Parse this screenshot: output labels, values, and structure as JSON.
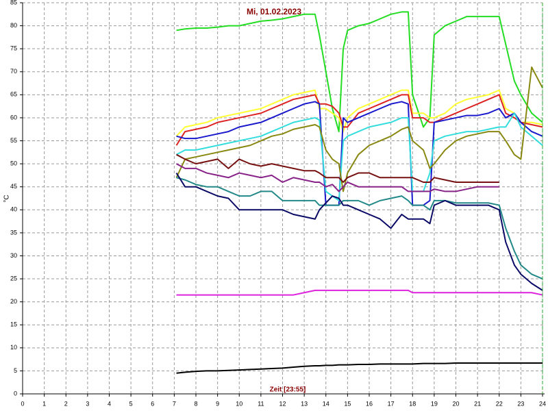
{
  "chart_data": {
    "type": "line",
    "title": "Mi, 01.02.2023",
    "x_label": "Zeit [23:55]",
    "y_label": "°C",
    "xlim": [
      0,
      24
    ],
    "ylim": [
      0,
      85
    ],
    "grid": true,
    "xticks": [
      0,
      1,
      2,
      3,
      4,
      5,
      6,
      7,
      8,
      9,
      10,
      11,
      12,
      13,
      14,
      15,
      16,
      17,
      18,
      19,
      20,
      21,
      22,
      23,
      24
    ],
    "yticks": [
      0,
      5,
      10,
      15,
      20,
      25,
      30,
      35,
      40,
      45,
      50,
      55,
      60,
      65,
      70,
      75,
      80,
      85
    ],
    "x": [
      7.1,
      7.5,
      8,
      8.5,
      9,
      9.5,
      10,
      10.5,
      11,
      11.5,
      12,
      12.5,
      13,
      13.5,
      13.7,
      14,
      14.3,
      14.6,
      14.8,
      15,
      15.5,
      16,
      16.5,
      17,
      17.5,
      17.8,
      18,
      18.5,
      18.8,
      19,
      19.5,
      20,
      20.5,
      21,
      21.5,
      22,
      22.3,
      22.7,
      23,
      23.5,
      24
    ],
    "series": [
      {
        "color": "#22dd22",
        "values": [
          79,
          79.3,
          79.5,
          79.5,
          79.7,
          80,
          80,
          80.5,
          81,
          81.2,
          81.5,
          82,
          82.5,
          82.5,
          78,
          70,
          62,
          57,
          75,
          79,
          80,
          80.5,
          81.5,
          82.5,
          83,
          83,
          65,
          58,
          60,
          78,
          80,
          81,
          82,
          82,
          82,
          82,
          76,
          68,
          65,
          61,
          59
        ]
      },
      {
        "color": "#ffff33",
        "values": [
          56,
          58,
          58.5,
          59,
          60,
          60.5,
          61,
          61.5,
          62,
          63,
          64,
          65,
          65.5,
          66,
          62,
          62,
          61,
          60,
          57,
          60,
          62,
          63,
          64,
          65,
          66,
          66,
          61,
          61,
          60,
          60,
          61,
          63,
          64,
          64.5,
          65,
          66,
          62,
          61,
          59,
          59,
          58.5
        ]
      },
      {
        "color": "#dd2222",
        "values": [
          54,
          57,
          57.5,
          58,
          59,
          59.5,
          60,
          60.5,
          61,
          62,
          63,
          64,
          64.5,
          65,
          63,
          63,
          62.5,
          61,
          58,
          58,
          61,
          62,
          63,
          64,
          65,
          65,
          60,
          60,
          59,
          59,
          60,
          61,
          62,
          63,
          64,
          65,
          61,
          60,
          59,
          58.5,
          58
        ]
      },
      {
        "color": "#1a1acc",
        "values": [
          56,
          55.5,
          55.5,
          56,
          56.5,
          57,
          58,
          58.5,
          59,
          60,
          61,
          62,
          63,
          63.5,
          63,
          41,
          41,
          41,
          60,
          59,
          60,
          61,
          62,
          63,
          63.5,
          63,
          41,
          41,
          42,
          59,
          59.5,
          60,
          60.5,
          60.5,
          61,
          62,
          60,
          61,
          59,
          57,
          56
        ]
      },
      {
        "color": "#33dddd",
        "values": [
          52,
          53,
          53,
          53.5,
          54,
          54.5,
          55,
          55.5,
          56,
          57,
          58,
          59,
          59.5,
          60,
          59.5,
          44,
          43,
          42,
          55,
          56,
          57,
          58,
          58.5,
          59,
          60,
          60,
          44,
          44,
          48,
          55,
          56,
          56.5,
          57,
          57,
          57.5,
          58,
          58,
          61,
          58,
          56,
          54
        ]
      },
      {
        "color": "#888811",
        "values": [
          47,
          51,
          51.5,
          52,
          52.5,
          53,
          53.5,
          54,
          55,
          56,
          56.5,
          57.5,
          58,
          58.5,
          58,
          53,
          51,
          50,
          44,
          48,
          52,
          54,
          55,
          56,
          57.5,
          58,
          55,
          53,
          49,
          50,
          53,
          55,
          56,
          56.5,
          57,
          57,
          55,
          52,
          51,
          71,
          66.5
        ]
      },
      {
        "color": "#771111",
        "values": [
          52,
          51,
          50,
          50.5,
          51,
          49,
          51,
          50,
          49.5,
          50,
          49.5,
          49,
          48.5,
          48.5,
          48,
          47,
          47,
          47,
          46,
          47,
          48,
          48,
          47,
          47,
          47,
          47,
          47,
          46,
          46,
          47,
          46.5,
          46,
          46,
          46,
          46,
          46,
          null,
          null,
          null,
          null,
          null
        ]
      },
      {
        "color": "#882288",
        "values": [
          50,
          49,
          49,
          48,
          47.5,
          47,
          48,
          47.5,
          47,
          47.5,
          46,
          47,
          46.5,
          46,
          46,
          45,
          45.5,
          44,
          45,
          46,
          45,
          45,
          45,
          45,
          45,
          44,
          44,
          44,
          44,
          44.5,
          44,
          44,
          44.5,
          45,
          45,
          45,
          null,
          null,
          null,
          null,
          null
        ]
      },
      {
        "color": "#228888",
        "values": [
          47,
          46.5,
          45.5,
          45,
          45,
          44,
          43,
          43,
          44,
          44,
          42,
          42,
          42,
          42,
          41,
          41,
          41,
          41,
          42,
          42,
          42,
          41,
          42,
          42.5,
          43,
          42,
          41,
          41,
          40,
          42,
          42,
          41.5,
          41.5,
          41.5,
          41.5,
          41,
          36,
          31,
          28,
          26,
          25
        ]
      },
      {
        "color": "#0a0a66",
        "values": [
          48,
          45,
          45,
          44,
          43,
          42.5,
          40,
          40,
          40,
          40,
          40,
          39,
          38.5,
          38,
          40,
          41.5,
          43,
          42.5,
          41,
          41,
          40,
          39,
          38,
          36,
          39,
          38,
          38,
          38,
          37,
          41,
          42,
          41,
          41,
          41,
          41,
          40,
          33,
          28,
          26,
          24,
          22.5
        ]
      },
      {
        "color": "#dd22dd",
        "values": [
          21.5,
          21.5,
          21.5,
          21.5,
          21.5,
          21.5,
          21.5,
          21.5,
          21.5,
          21.5,
          21.5,
          21.5,
          22,
          22.5,
          22.5,
          22.5,
          22.5,
          22.5,
          22.5,
          22.5,
          22.5,
          22.5,
          22.5,
          22.5,
          22.5,
          22.5,
          22,
          22,
          22,
          22,
          22,
          22,
          22,
          22,
          22,
          22,
          22,
          22,
          22,
          22,
          21.5
        ]
      },
      {
        "color": "#000000",
        "values": [
          4.5,
          4.7,
          4.9,
          5,
          5,
          5.1,
          5.2,
          5.3,
          5.4,
          5.5,
          5.6,
          5.8,
          6,
          6.1,
          6.1,
          6.2,
          6.2,
          6.3,
          6.3,
          6.3,
          6.4,
          6.4,
          6.5,
          6.5,
          6.5,
          6.5,
          6.5,
          6.6,
          6.6,
          6.6,
          6.6,
          6.7,
          6.7,
          6.7,
          6.7,
          6.7,
          6.7,
          6.7,
          6.7,
          6.7,
          6.7
        ]
      }
    ]
  }
}
